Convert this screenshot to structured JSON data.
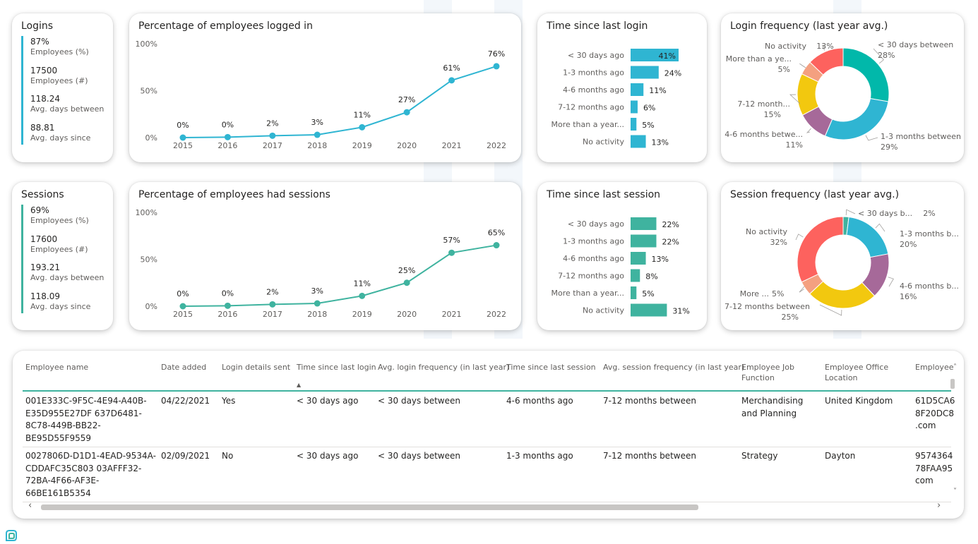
{
  "colors": {
    "login_accent": "#2fb5d2",
    "session_accent": "#3fb39f",
    "donut_login": [
      "#fd625e",
      "#f4a080",
      "#f2c80f",
      "#a66999",
      "#2fb5d2",
      "#01b8aa"
    ],
    "donut_session": [
      "#3fb39f",
      "#2fb5d2",
      "#a66999",
      "#f2c80f",
      "#f4a080",
      "#fd625e"
    ]
  },
  "logins": {
    "title": "Logins",
    "items": [
      {
        "value": "87%",
        "label": "Employees (%)"
      },
      {
        "value": "17500",
        "label": "Employees (#)"
      },
      {
        "value": "118.24",
        "label": "Avg. days between"
      },
      {
        "value": "88.81",
        "label": "Avg. days since"
      }
    ]
  },
  "sessions": {
    "title": "Sessions",
    "items": [
      {
        "value": "69%",
        "label": "Employees (%)"
      },
      {
        "value": "17600",
        "label": "Employees (#)"
      },
      {
        "value": "193.21",
        "label": "Avg. days between"
      },
      {
        "value": "118.09",
        "label": "Avg. days since"
      }
    ]
  },
  "chart_data": [
    {
      "id": "login_line",
      "type": "line",
      "title": "Percentage of employees logged in",
      "x": [
        "2015",
        "2016",
        "2017",
        "2018",
        "2019",
        "2020",
        "2021",
        "2022"
      ],
      "values": [
        0,
        0.5,
        2,
        3,
        11,
        27,
        61,
        76
      ],
      "data_labels": [
        "0%",
        "0%",
        "2%",
        "3%",
        "11%",
        "27%",
        "61%",
        "76%"
      ],
      "ylim": [
        0,
        100
      ],
      "yticks": [
        "0%",
        "50%",
        "100%"
      ]
    },
    {
      "id": "session_line",
      "type": "line",
      "title": "Percentage of employees had sessions",
      "x": [
        "2015",
        "2016",
        "2017",
        "2018",
        "2019",
        "2020",
        "2021",
        "2022"
      ],
      "values": [
        0,
        0.5,
        2,
        3,
        11,
        25,
        57,
        65
      ],
      "data_labels": [
        "0%",
        "0%",
        "2%",
        "3%",
        "11%",
        "25%",
        "57%",
        "65%"
      ],
      "ylim": [
        0,
        100
      ],
      "yticks": [
        "0%",
        "50%",
        "100%"
      ]
    },
    {
      "id": "login_bar",
      "type": "bar",
      "orientation": "horizontal",
      "title": "Time since last login",
      "categories": [
        "< 30 days ago",
        "1-3 months ago",
        "4-6 months ago",
        "7-12 months ago",
        "More than a year...",
        "No activity"
      ],
      "values": [
        41,
        24,
        11,
        6,
        5,
        13
      ],
      "data_labels": [
        "41%",
        "24%",
        "11%",
        "6%",
        "5%",
        "13%"
      ]
    },
    {
      "id": "session_bar",
      "type": "bar",
      "orientation": "horizontal",
      "title": "Time since last session",
      "categories": [
        "< 30 days ago",
        "1-3 months ago",
        "4-6 months ago",
        "7-12 months ago",
        "More than a year...",
        "No activity"
      ],
      "values": [
        22,
        22,
        13,
        8,
        5,
        31
      ],
      "data_labels": [
        "22%",
        "22%",
        "13%",
        "8%",
        "5%",
        "31%"
      ]
    },
    {
      "id": "login_donut",
      "type": "pie",
      "title": "Login frequency (last year avg.)",
      "slices": [
        {
          "name": "< 30 days between",
          "value": 28,
          "label": "28%"
        },
        {
          "name": "1-3 months between",
          "value": 29,
          "label": "29%"
        },
        {
          "name": "4-6 months betwe...",
          "value": 11,
          "label": "11%"
        },
        {
          "name": "7-12 month...",
          "value": 15,
          "label": "15%"
        },
        {
          "name": "More than a ye...",
          "value": 5,
          "label": "5%"
        },
        {
          "name": "No activity",
          "value": 13,
          "label": "13%"
        }
      ]
    },
    {
      "id": "session_donut",
      "type": "pie",
      "title": "Session frequency (last year avg.)",
      "slices": [
        {
          "name": "< 30 days b...",
          "value": 2,
          "label": "2%"
        },
        {
          "name": "1-3 months b...",
          "value": 20,
          "label": "20%"
        },
        {
          "name": "4-6 months b...",
          "value": 16,
          "label": "16%"
        },
        {
          "name": "7-12 months between",
          "value": 25,
          "label": "25%"
        },
        {
          "name": "More ...",
          "value": 5,
          "label": "5%"
        },
        {
          "name": "No activity",
          "value": 32,
          "label": "32%"
        }
      ]
    }
  ],
  "table": {
    "headers": [
      "Employee name",
      "Date added",
      "Login details sent",
      "Time since last login",
      "Avg. login frequency (in last year)",
      "Time since last session",
      "Avg. session frequency (in last year)",
      "Employee Job\nFunction",
      "Employee Office\nLocation",
      "Employee"
    ],
    "rows": [
      [
        "001E333C-9F5C-4E94-A40B-\nE35D955E27DF 637D6481-\n8C78-449B-BB22-\nBE95D55F9559",
        "04/22/2021",
        "Yes",
        "< 30 days ago",
        "< 30 days between",
        "4-6 months ago",
        "7-12 months between",
        "Merchandising\nand Planning",
        "United Kingdom",
        "61D5CA6\n8F20DC8\n.com"
      ],
      [
        "0027806D-D1D1-4EAD-9534A-\nCDDAFC35C803 03AFFF32-\n72BA-4F66-AF3E-\n66BE161B5354",
        "02/09/2021",
        "No",
        "< 30 days ago",
        "< 30 days between",
        "1-3 months ago",
        "7-12 months between",
        "Strategy",
        "Dayton",
        "9574364\n78FAA95\ncom"
      ]
    ],
    "sort_indicator": "▲",
    "scroll_left": "‹",
    "scroll_right": "›",
    "scroll_up": "˄",
    "scroll_down": "˅"
  }
}
